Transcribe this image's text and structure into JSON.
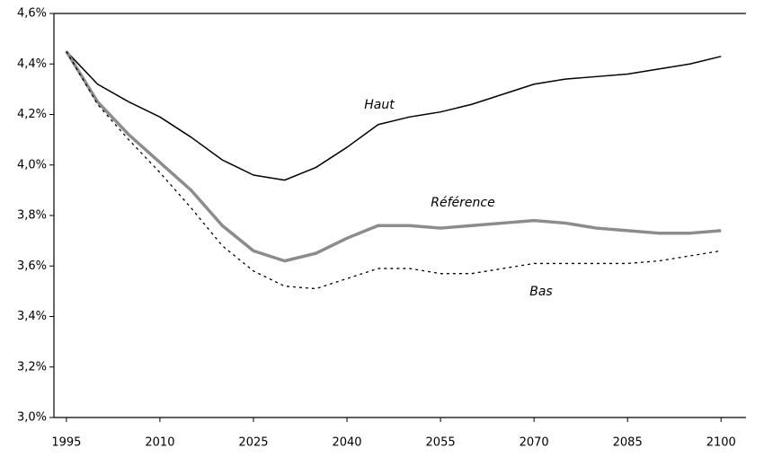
{
  "chart_data": {
    "type": "line",
    "x": [
      1995,
      2000,
      2005,
      2010,
      2015,
      2020,
      2025,
      2030,
      2035,
      2040,
      2045,
      2050,
      2055,
      2060,
      2065,
      2070,
      2075,
      2080,
      2085,
      2090,
      2095,
      2100
    ],
    "series": [
      {
        "name": "Haut",
        "color": "#000000",
        "width": 1.5,
        "dashed": false,
        "values": [
          4.45,
          4.32,
          4.25,
          4.19,
          4.11,
          4.02,
          3.96,
          3.94,
          3.99,
          4.07,
          4.16,
          4.19,
          4.21,
          4.24,
          4.28,
          4.32,
          4.34,
          4.35,
          4.36,
          4.38,
          4.4,
          4.43
        ]
      },
      {
        "name": "Référence",
        "color": "#8c8c8c",
        "width": 3.5,
        "dashed": false,
        "values": [
          4.45,
          4.25,
          4.12,
          4.01,
          3.9,
          3.76,
          3.66,
          3.62,
          3.65,
          3.71,
          3.76,
          3.76,
          3.75,
          3.76,
          3.77,
          3.78,
          3.77,
          3.75,
          3.74,
          3.73,
          3.73,
          3.74
        ]
      },
      {
        "name": "Bas",
        "color": "#000000",
        "width": 1.3,
        "dashed": true,
        "values": [
          4.45,
          4.24,
          4.1,
          3.97,
          3.83,
          3.68,
          3.58,
          3.52,
          3.51,
          3.55,
          3.59,
          3.59,
          3.57,
          3.57,
          3.59,
          3.61,
          3.61,
          3.61,
          3.61,
          3.62,
          3.64,
          3.66
        ]
      }
    ],
    "xlim": [
      1993,
      2104
    ],
    "xticks": [
      1995,
      2010,
      2025,
      2040,
      2055,
      2070,
      2085,
      2100
    ],
    "ylim": [
      3.0,
      4.6
    ],
    "yticks": [
      {
        "value": 3.0,
        "label": "3,0%"
      },
      {
        "value": 3.2,
        "label": "3,2%"
      },
      {
        "value": 3.4,
        "label": "3,4%"
      },
      {
        "value": 3.6,
        "label": "3,6%"
      },
      {
        "value": 3.8,
        "label": "3,8%"
      },
      {
        "value": 4.0,
        "label": "4,0%"
      },
      {
        "value": 4.2,
        "label": "4,2%"
      },
      {
        "value": 4.4,
        "label": "4,4%"
      },
      {
        "value": 4.6,
        "label": "4,6%"
      }
    ],
    "grid": false
  }
}
